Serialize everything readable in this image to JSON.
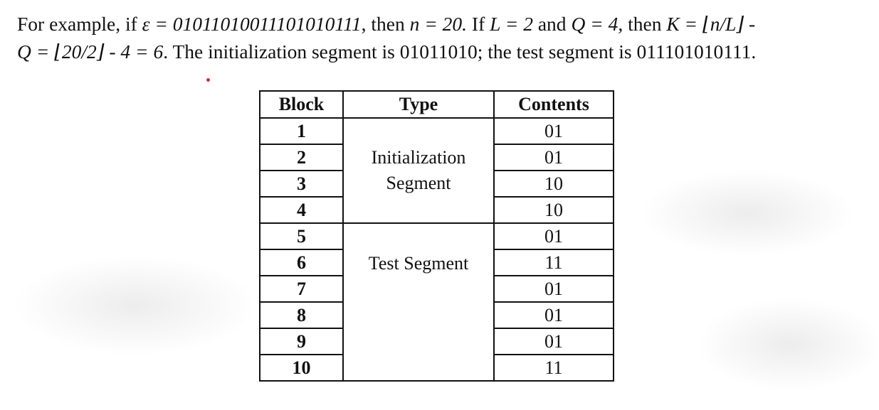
{
  "paragraph": {
    "line1": {
      "p1": "For example, if ",
      "epsilon_eq": "ε = 01011010011101010111",
      "p2": ", then ",
      "n_eq": "n = 20.",
      "p3": " If ",
      "L_eq": "L = 2",
      "p4": " and ",
      "Q_eq": "Q = 4,",
      "p5": " then ",
      "K_eq": "K = ⌊n/L⌋ -"
    },
    "line2": {
      "Q_formula": "Q = ⌊20/2⌋ - 4 = 6",
      "text": ". The initialization segment is 01011010; the test segment is 011101010111."
    }
  },
  "table": {
    "headers": [
      "Block",
      "Type",
      "Contents"
    ],
    "init_type": [
      "Initialization",
      "Segment"
    ],
    "test_type": "Test Segment",
    "rows": [
      {
        "block": "1",
        "contents": "01"
      },
      {
        "block": "2",
        "contents": "01"
      },
      {
        "block": "3",
        "contents": "10"
      },
      {
        "block": "4",
        "contents": "10"
      },
      {
        "block": "5",
        "contents": "01"
      },
      {
        "block": "6",
        "contents": "11"
      },
      {
        "block": "7",
        "contents": "01"
      },
      {
        "block": "8",
        "contents": "01"
      },
      {
        "block": "9",
        "contents": "01"
      },
      {
        "block": "10",
        "contents": "11"
      }
    ]
  }
}
